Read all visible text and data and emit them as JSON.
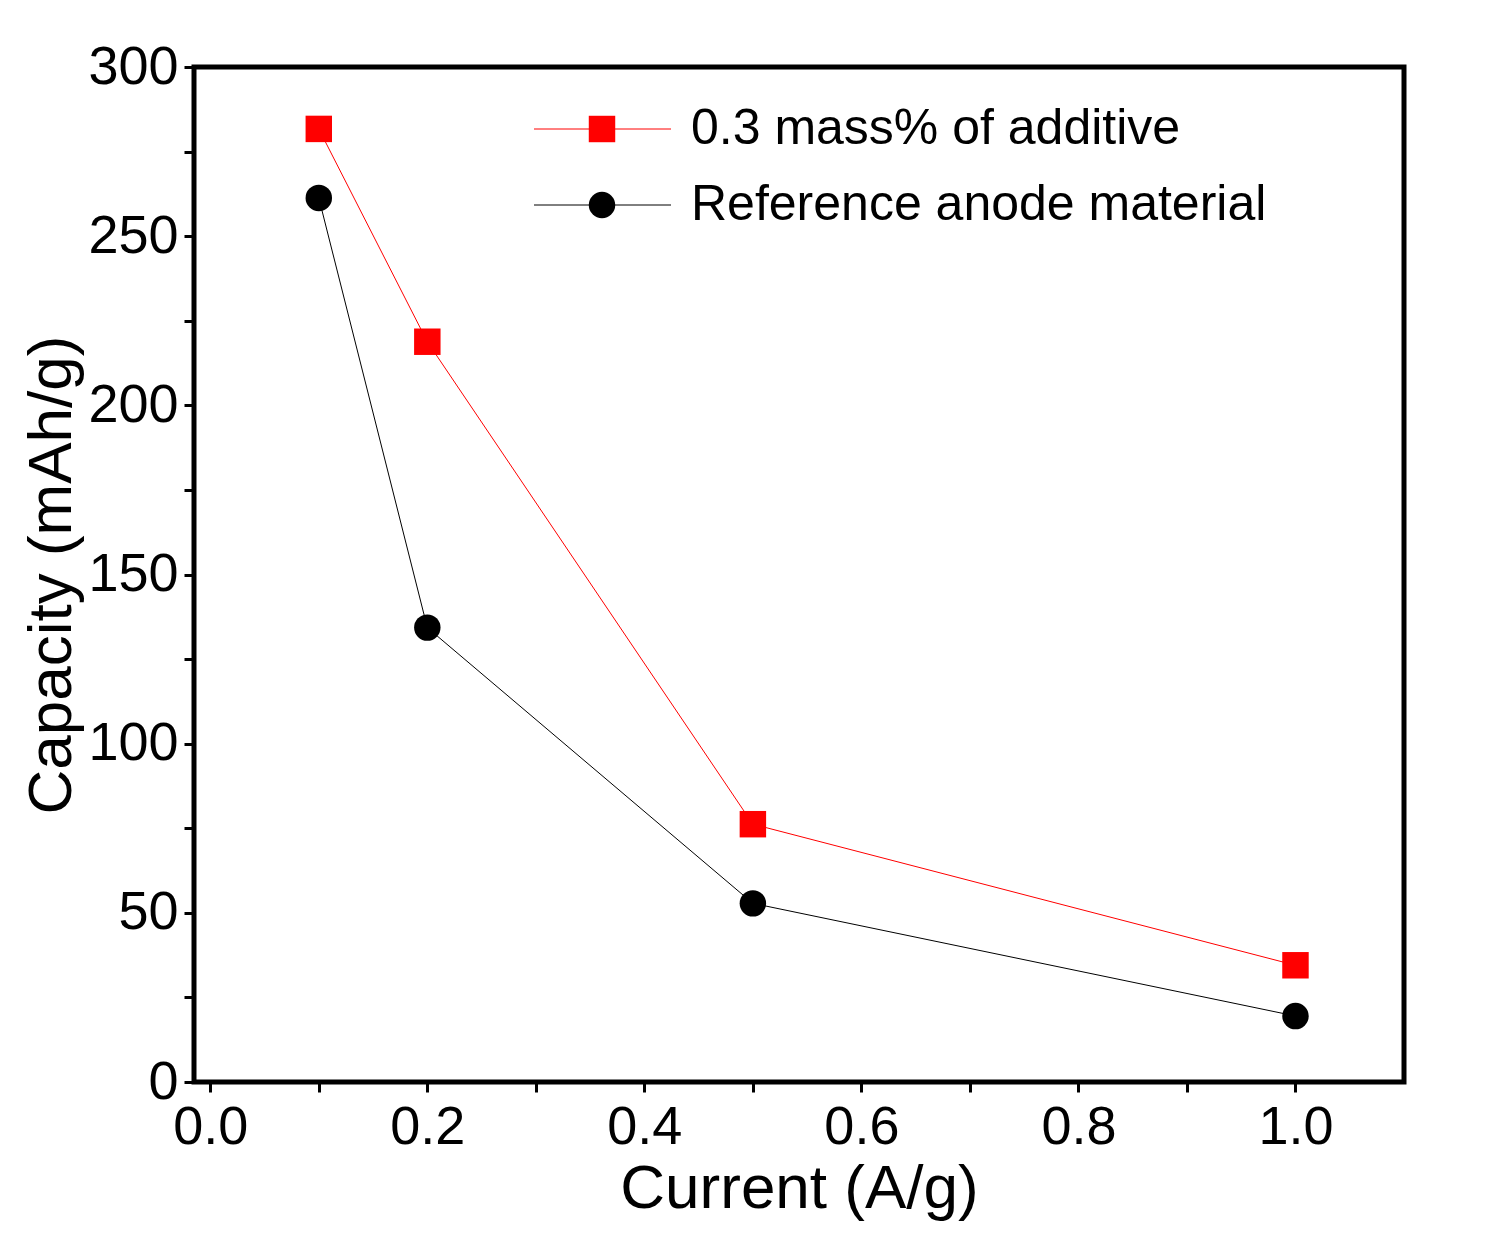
{
  "chart_data": {
    "type": "line",
    "xlabel": "Current (A/g)",
    "ylabel": "Capacity (mAh/g)",
    "x": [
      0.1,
      0.2,
      0.5,
      1.0
    ],
    "series": [
      {
        "name": "0.3 mass% of additive",
        "color": "#ff0000",
        "marker": "square",
        "values": [
          281.7,
          218.8,
          76.2,
          34.5
        ]
      },
      {
        "name": "Reference anode material",
        "color": "#000000",
        "marker": "circle",
        "values": [
          261.3,
          134.3,
          52.8,
          19.5
        ]
      }
    ],
    "xlim": [
      -0.015,
      1.1
    ],
    "ylim": [
      0,
      300
    ],
    "xticks": [
      {
        "value": 0,
        "label": "0.0"
      },
      {
        "value": 0.1,
        "label": null
      },
      0.2,
      {
        "value": 0.3,
        "label": null
      },
      0.4,
      {
        "value": 0.5,
        "label": null
      },
      0.6,
      {
        "value": 0.7,
        "label": null
      },
      0.8,
      {
        "value": 0.9,
        "label": null
      },
      {
        "value": 1.0,
        "label": "1.0"
      }
    ],
    "yticks": [
      0,
      {
        "value": 25,
        "label": null
      },
      50,
      {
        "value": 75,
        "label": null
      },
      100,
      {
        "value": 125,
        "label": null
      },
      150,
      {
        "value": 175,
        "label": null
      },
      200,
      {
        "value": 225,
        "label": null
      },
      250,
      {
        "value": 275,
        "label": null
      },
      300
    ],
    "grid": false,
    "legend": "top right",
    "line_style": "solid"
  }
}
